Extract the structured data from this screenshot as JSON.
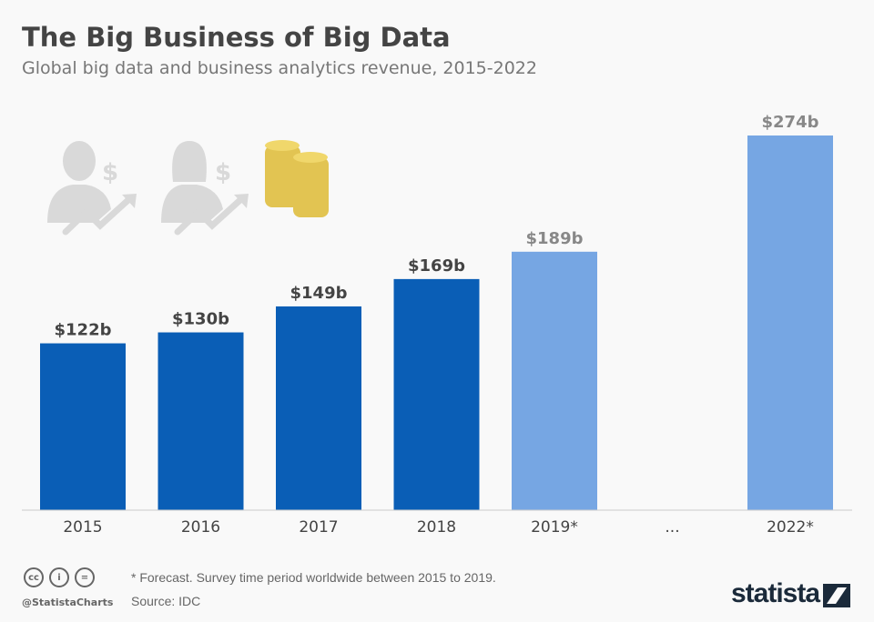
{
  "title": "The Big Business of Big Data",
  "subtitle": "Global big data and business analytics revenue, 2015-2022",
  "chart_data": {
    "type": "bar",
    "categories": [
      "2015",
      "2016",
      "2017",
      "2018",
      "2019*",
      "...",
      "2022*"
    ],
    "values": [
      122,
      130,
      149,
      169,
      189,
      null,
      274
    ],
    "labels": [
      "$122b",
      "$130b",
      "$149b",
      "$169b",
      "$189b",
      "",
      "$274b"
    ],
    "forecast": [
      false,
      false,
      false,
      false,
      true,
      false,
      true
    ],
    "ylim": [
      0,
      274
    ],
    "grid": false,
    "colors": {
      "actual": "#0a5eb6",
      "forecast": "#76a6e3"
    }
  },
  "icons": [
    "businessman-dollar-icon",
    "businesswoman-dollar-icon",
    "coins-icon"
  ],
  "footer": {
    "note": "* Forecast. Survey time period worldwide between 2015 to 2019.",
    "source": "Source: IDC",
    "handle": "@StatistaCharts",
    "cc": [
      "cc",
      "i",
      "="
    ],
    "logo": "statista"
  }
}
